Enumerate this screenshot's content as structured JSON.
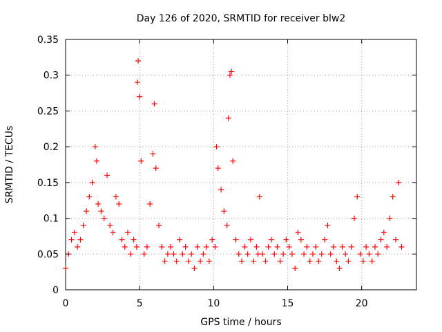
{
  "chart_data": {
    "type": "scatter",
    "title": "Day 126 of 2020, SRMTID for receiver blw2",
    "xlabel": "GPS time / hours",
    "ylabel": "SRMTID / TECUs",
    "xlim": [
      0,
      23.7
    ],
    "ylim": [
      0,
      0.35
    ],
    "xticks": [
      0,
      5,
      10,
      15,
      20
    ],
    "yticks": [
      0,
      0.05,
      0.1,
      0.15,
      0.2,
      0.25,
      0.3,
      0.35
    ],
    "xtick_labels": [
      "0",
      "5",
      "10",
      "15",
      "20"
    ],
    "ytick_labels": [
      "0",
      "0.05",
      "0.1",
      "0.15",
      "0.2",
      "0.25",
      "0.3",
      "0.35"
    ],
    "grid": true,
    "marker": "+",
    "marker_color": "#ff0000",
    "series": [
      {
        "name": "SRMTID",
        "x": [
          0.0,
          0.2,
          0.4,
          0.6,
          0.8,
          1.0,
          1.2,
          1.4,
          1.6,
          1.8,
          2.0,
          2.1,
          2.2,
          2.4,
          2.6,
          2.8,
          3.0,
          3.2,
          3.4,
          3.6,
          3.8,
          4.0,
          4.2,
          4.4,
          4.6,
          4.8,
          4.85,
          4.9,
          5.0,
          5.1,
          5.3,
          5.5,
          5.7,
          5.9,
          6.0,
          6.1,
          6.3,
          6.5,
          6.7,
          6.9,
          7.1,
          7.3,
          7.5,
          7.7,
          7.9,
          8.1,
          8.3,
          8.5,
          8.7,
          8.9,
          9.1,
          9.3,
          9.5,
          9.7,
          9.9,
          10.1,
          10.2,
          10.3,
          10.5,
          10.7,
          10.9,
          11.0,
          11.1,
          11.2,
          11.3,
          11.5,
          11.7,
          11.9,
          12.1,
          12.3,
          12.5,
          12.7,
          12.9,
          13.0,
          13.1,
          13.3,
          13.5,
          13.7,
          13.9,
          14.1,
          14.3,
          14.5,
          14.7,
          14.9,
          15.1,
          15.3,
          15.5,
          15.7,
          15.9,
          16.1,
          16.3,
          16.5,
          16.7,
          16.9,
          17.1,
          17.3,
          17.5,
          17.7,
          17.9,
          18.1,
          18.3,
          18.5,
          18.7,
          18.9,
          19.1,
          19.3,
          19.5,
          19.7,
          19.9,
          20.1,
          20.3,
          20.5,
          20.7,
          20.9,
          21.1,
          21.3,
          21.5,
          21.7,
          21.9,
          22.1,
          22.3,
          22.5,
          22.7
        ],
        "y": [
          0.03,
          0.05,
          0.07,
          0.08,
          0.06,
          0.07,
          0.09,
          0.11,
          0.13,
          0.15,
          0.2,
          0.18,
          0.12,
          0.11,
          0.1,
          0.16,
          0.09,
          0.08,
          0.13,
          0.12,
          0.07,
          0.06,
          0.08,
          0.05,
          0.07,
          0.06,
          0.29,
          0.32,
          0.27,
          0.18,
          0.05,
          0.06,
          0.12,
          0.19,
          0.26,
          0.17,
          0.09,
          0.06,
          0.04,
          0.05,
          0.06,
          0.05,
          0.04,
          0.07,
          0.05,
          0.06,
          0.04,
          0.05,
          0.03,
          0.06,
          0.04,
          0.05,
          0.06,
          0.04,
          0.07,
          0.06,
          0.2,
          0.17,
          0.14,
          0.11,
          0.09,
          0.24,
          0.3,
          0.305,
          0.18,
          0.07,
          0.05,
          0.04,
          0.06,
          0.05,
          0.07,
          0.04,
          0.06,
          0.05,
          0.13,
          0.05,
          0.04,
          0.06,
          0.07,
          0.05,
          0.06,
          0.04,
          0.05,
          0.07,
          0.06,
          0.05,
          0.03,
          0.08,
          0.07,
          0.05,
          0.06,
          0.04,
          0.05,
          0.06,
          0.04,
          0.05,
          0.07,
          0.09,
          0.05,
          0.06,
          0.04,
          0.03,
          0.06,
          0.05,
          0.04,
          0.06,
          0.1,
          0.13,
          0.05,
          0.04,
          0.06,
          0.05,
          0.04,
          0.06,
          0.05,
          0.07,
          0.08,
          0.06,
          0.1,
          0.13,
          0.07,
          0.15,
          0.06
        ]
      }
    ]
  }
}
